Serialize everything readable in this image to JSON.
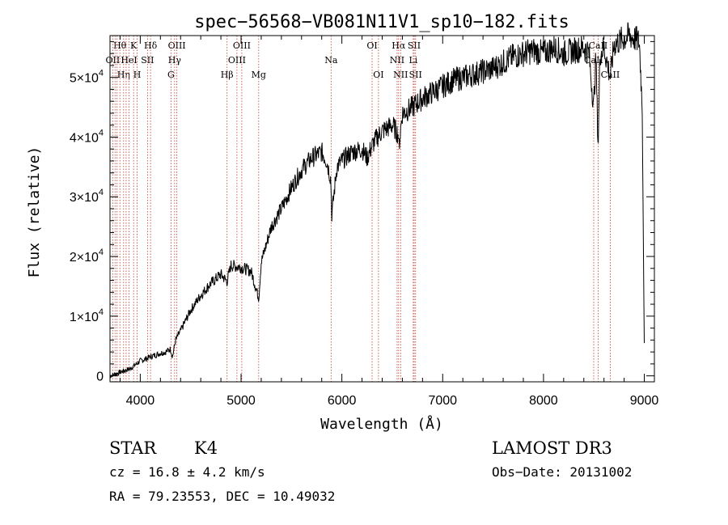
{
  "chart_data": {
    "type": "line",
    "title": "spec−56568−VB081N11V1_sp10−182.fits",
    "xlabel": "Wavelength (Å)",
    "ylabel": "Flux (relative)",
    "xlim": [
      3700,
      9100
    ],
    "ylim": [
      -1000,
      57000
    ],
    "x_ticks": [
      4000,
      5000,
      6000,
      7000,
      8000,
      9000
    ],
    "x_tick_labels": [
      "4000",
      "5000",
      "6000",
      "7000",
      "8000",
      "9000"
    ],
    "y_ticks": [
      0,
      10000,
      20000,
      30000,
      40000,
      50000
    ],
    "y_tick_labels": [
      {
        "base": "0",
        "exp": ""
      },
      {
        "base": "1×10",
        "exp": "4"
      },
      {
        "base": "2×10",
        "exp": "4"
      },
      {
        "base": "3×10",
        "exp": "4"
      },
      {
        "base": "4×10",
        "exp": "4"
      },
      {
        "base": "5×10",
        "exp": "4"
      }
    ],
    "series": [
      {
        "name": "flux",
        "x": [
          3700,
          3800,
          3900,
          4000,
          4050,
          4100,
          4200,
          4250,
          4300,
          4320,
          4350,
          4400,
          4500,
          4600,
          4700,
          4800,
          4860,
          4900,
          5000,
          5100,
          5150,
          5175,
          5200,
          5300,
          5400,
          5500,
          5600,
          5700,
          5800,
          5850,
          5890,
          5900,
          5950,
          6000,
          6100,
          6200,
          6250,
          6300,
          6350,
          6400,
          6500,
          6560,
          6563,
          6600,
          6700,
          6800,
          6900,
          7000,
          7100,
          7200,
          7300,
          7400,
          7500,
          7600,
          7700,
          7800,
          7900,
          8000,
          8100,
          8200,
          8300,
          8400,
          8450,
          8498,
          8520,
          8542,
          8560,
          8600,
          8662,
          8700,
          8800,
          8850,
          8900,
          8950,
          8980,
          9000
        ],
        "y": [
          0,
          600,
          1200,
          2500,
          2800,
          3200,
          3800,
          4000,
          4500,
          3200,
          6000,
          7500,
          11000,
          13500,
          15500,
          17000,
          15800,
          18500,
          18200,
          17500,
          14500,
          13000,
          19000,
          25000,
          28000,
          31500,
          34500,
          36500,
          37500,
          36000,
          33000,
          27000,
          35000,
          36000,
          37500,
          38000,
          36500,
          38500,
          40000,
          41000,
          42000,
          40500,
          38000,
          44000,
          45000,
          46500,
          47500,
          48500,
          49500,
          50000,
          50500,
          51000,
          51500,
          52500,
          53500,
          54000,
          54500,
          54000,
          55000,
          54000,
          54500,
          55000,
          54200,
          45000,
          53500,
          38000,
          54000,
          55000,
          50000,
          55500,
          56500,
          57000,
          56500,
          56000,
          45000,
          5000
        ]
      }
    ],
    "line_markers": [
      {
        "label": "Hθ",
        "x": 3798,
        "row": 1
      },
      {
        "label": "OII",
        "x": 3727,
        "row": 2
      },
      {
        "label": "Hη",
        "x": 3835,
        "row": 3
      },
      {
        "label": "HeI",
        "x": 3889,
        "row": 2
      },
      {
        "label": "K",
        "x": 3934,
        "row": 1
      },
      {
        "label": "H",
        "x": 3969,
        "row": 3
      },
      {
        "label": "Hδ",
        "x": 4102,
        "row": 1
      },
      {
        "label": "SII",
        "x": 4072,
        "row": 2
      },
      {
        "label": "OIII",
        "x": 4363,
        "row": 1
      },
      {
        "label": "Hγ",
        "x": 4341,
        "row": 2
      },
      {
        "label": "G",
        "x": 4305,
        "row": 3
      },
      {
        "label": "Hβ",
        "x": 4861,
        "row": 3
      },
      {
        "label": "OIII",
        "x": 5007,
        "row": 1
      },
      {
        "label": "OIII",
        "x": 4959,
        "row": 2
      },
      {
        "label": "Mg",
        "x": 5175,
        "row": 3
      },
      {
        "label": "Na",
        "x": 5893,
        "row": 2
      },
      {
        "label": "OI",
        "x": 6300,
        "row": 1
      },
      {
        "label": "OI",
        "x": 6363,
        "row": 3
      },
      {
        "label": "Hα",
        "x": 6563,
        "row": 1
      },
      {
        "label": "NII",
        "x": 6548,
        "row": 2
      },
      {
        "label": "NII",
        "x": 6583,
        "row": 3
      },
      {
        "label": "SII",
        "x": 6717,
        "row": 1
      },
      {
        "label": "Li",
        "x": 6708,
        "row": 2
      },
      {
        "label": "SII",
        "x": 6731,
        "row": 3
      },
      {
        "label": "CaII",
        "x": 8542,
        "row": 1
      },
      {
        "label": "CaII",
        "x": 8498,
        "row": 2
      },
      {
        "label": "CaII",
        "x": 8662,
        "row": 3
      }
    ],
    "extra_marker_lines": [
      3750,
      3770,
      3860
    ]
  },
  "info": {
    "object_class": "STAR",
    "subclass": "K4",
    "survey": "LAMOST DR3",
    "redshift": "cz = 16.8 ± 4.2 km/s",
    "obs_date": "Obs−Date: 20131002",
    "coords": "RA =  79.23553, DEC =  10.49032"
  },
  "colors": {
    "line": "#000000",
    "marker": "#c0392b",
    "axis": "#000000",
    "background": "#ffffff"
  }
}
